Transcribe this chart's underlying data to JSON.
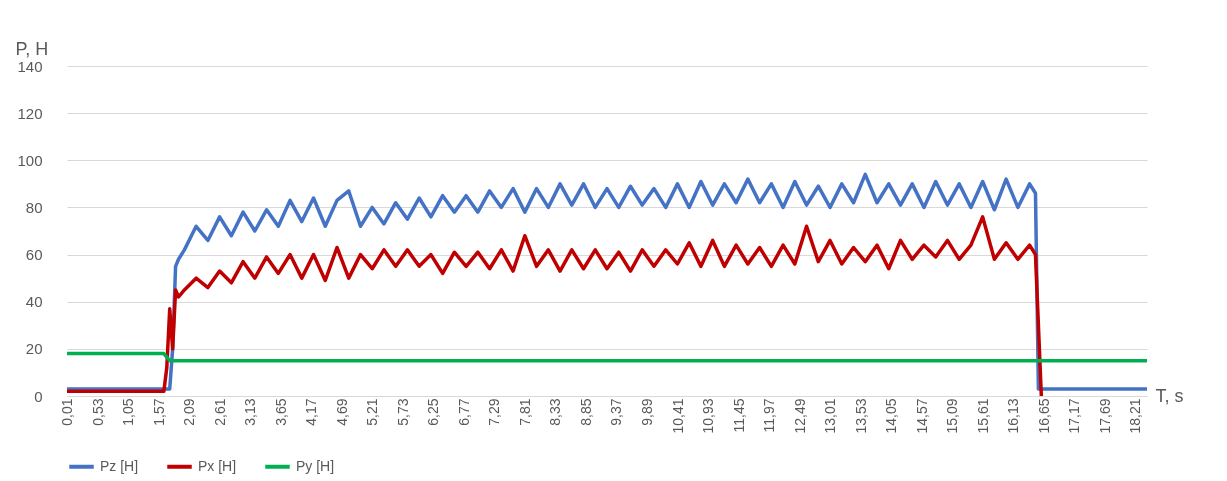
{
  "chart_data": {
    "type": "line",
    "xlabel": "T, s",
    "ylabel": "P, H",
    "xlim": [
      0,
      18.4
    ],
    "ylim": [
      0,
      140
    ],
    "yticks": [
      0,
      20,
      40,
      60,
      80,
      100,
      120,
      140
    ],
    "xticks": [
      {
        "value": 0.01,
        "label": "0,01"
      },
      {
        "value": 0.53,
        "label": "0,53"
      },
      {
        "value": 1.05,
        "label": "1,05"
      },
      {
        "value": 1.57,
        "label": "1,57"
      },
      {
        "value": 2.09,
        "label": "2,09"
      },
      {
        "value": 2.61,
        "label": "2,61"
      },
      {
        "value": 3.13,
        "label": "3,13"
      },
      {
        "value": 3.65,
        "label": "3,65"
      },
      {
        "value": 4.17,
        "label": "4,17"
      },
      {
        "value": 4.69,
        "label": "4,69"
      },
      {
        "value": 5.21,
        "label": "5,21"
      },
      {
        "value": 5.73,
        "label": "5,73"
      },
      {
        "value": 6.25,
        "label": "6,25"
      },
      {
        "value": 6.77,
        "label": "6,77"
      },
      {
        "value": 7.29,
        "label": "7,29"
      },
      {
        "value": 7.81,
        "label": "7,81"
      },
      {
        "value": 8.33,
        "label": "8,33"
      },
      {
        "value": 8.85,
        "label": "8,85"
      },
      {
        "value": 9.37,
        "label": "9,37"
      },
      {
        "value": 9.89,
        "label": "9,89"
      },
      {
        "value": 10.41,
        "label": "10,41"
      },
      {
        "value": 10.93,
        "label": "10,93"
      },
      {
        "value": 11.45,
        "label": "11,45"
      },
      {
        "value": 11.97,
        "label": "11,97"
      },
      {
        "value": 12.49,
        "label": "12,49"
      },
      {
        "value": 13.01,
        "label": "13,01"
      },
      {
        "value": 13.53,
        "label": "13,53"
      },
      {
        "value": 14.05,
        "label": "14,05"
      },
      {
        "value": 14.57,
        "label": "14,57"
      },
      {
        "value": 15.09,
        "label": "15,09"
      },
      {
        "value": 15.61,
        "label": "15,61"
      },
      {
        "value": 16.13,
        "label": "16,13"
      },
      {
        "value": 16.65,
        "label": "16,65"
      },
      {
        "value": 17.17,
        "label": "17,17"
      },
      {
        "value": 17.69,
        "label": "17,69"
      },
      {
        "value": 18.21,
        "label": "18,21"
      }
    ],
    "grid": "y",
    "legend": "bottom",
    "line_style": "solid",
    "marker": "none",
    "series": [
      {
        "name": "Pz [H]",
        "color": "#4472c4",
        "x": [
          0,
          1.75,
          1.8,
          1.85,
          1.9,
          2.0,
          2.2,
          2.4,
          2.6,
          2.8,
          3.0,
          3.2,
          3.4,
          3.6,
          3.8,
          4.0,
          4.2,
          4.4,
          4.6,
          4.8,
          5.0,
          5.2,
          5.4,
          5.6,
          5.8,
          6.0,
          6.2,
          6.4,
          6.6,
          6.8,
          7.0,
          7.2,
          7.4,
          7.6,
          7.8,
          8.0,
          8.2,
          8.4,
          8.6,
          8.8,
          9.0,
          9.2,
          9.4,
          9.6,
          9.8,
          10.0,
          10.2,
          10.4,
          10.6,
          10.8,
          11.0,
          11.2,
          11.4,
          11.6,
          11.8,
          12.0,
          12.2,
          12.4,
          12.6,
          12.8,
          13.0,
          13.2,
          13.4,
          13.6,
          13.8,
          14.0,
          14.2,
          14.4,
          14.6,
          14.8,
          15.0,
          15.2,
          15.4,
          15.6,
          15.8,
          16.0,
          16.2,
          16.4,
          16.5,
          16.55,
          16.7,
          18.4
        ],
        "values": [
          3,
          3,
          20,
          55,
          58,
          62,
          72,
          66,
          76,
          68,
          78,
          70,
          79,
          72,
          83,
          74,
          84,
          72,
          83,
          87,
          72,
          80,
          73,
          82,
          75,
          84,
          76,
          85,
          78,
          85,
          78,
          87,
          80,
          88,
          78,
          88,
          80,
          90,
          81,
          90,
          80,
          88,
          80,
          89,
          81,
          88,
          80,
          90,
          80,
          91,
          81,
          90,
          82,
          92,
          82,
          90,
          80,
          91,
          81,
          89,
          80,
          90,
          82,
          94,
          82,
          90,
          81,
          90,
          80,
          91,
          81,
          90,
          80,
          91,
          79,
          92,
          80,
          90,
          86,
          3,
          3,
          3
        ]
      },
      {
        "name": "Px [H]",
        "color": "#c00000",
        "x": [
          0,
          1.65,
          1.7,
          1.75,
          1.8,
          1.85,
          1.9,
          2.0,
          2.2,
          2.4,
          2.6,
          2.8,
          3.0,
          3.2,
          3.4,
          3.6,
          3.8,
          4.0,
          4.2,
          4.4,
          4.6,
          4.8,
          5.0,
          5.2,
          5.4,
          5.6,
          5.8,
          6.0,
          6.2,
          6.4,
          6.6,
          6.8,
          7.0,
          7.2,
          7.4,
          7.6,
          7.8,
          8.0,
          8.2,
          8.4,
          8.6,
          8.8,
          9.0,
          9.2,
          9.4,
          9.6,
          9.8,
          10.0,
          10.2,
          10.4,
          10.6,
          10.8,
          11.0,
          11.2,
          11.4,
          11.6,
          11.8,
          12.0,
          12.2,
          12.4,
          12.6,
          12.8,
          13.0,
          13.2,
          13.4,
          13.6,
          13.8,
          14.0,
          14.2,
          14.4,
          14.6,
          14.8,
          15.0,
          15.2,
          15.4,
          15.6,
          15.8,
          16.0,
          16.2,
          16.4,
          16.5,
          16.6
        ],
        "values": [
          2,
          2,
          12,
          37,
          20,
          45,
          42,
          45,
          50,
          46,
          53,
          48,
          57,
          50,
          59,
          52,
          60,
          50,
          60,
          49,
          63,
          50,
          60,
          54,
          62,
          55,
          62,
          55,
          60,
          52,
          61,
          55,
          61,
          54,
          62,
          53,
          68,
          55,
          62,
          53,
          62,
          54,
          62,
          54,
          61,
          53,
          62,
          55,
          62,
          56,
          65,
          55,
          66,
          55,
          64,
          56,
          63,
          55,
          64,
          56,
          72,
          57,
          66,
          56,
          63,
          57,
          64,
          54,
          66,
          58,
          64,
          59,
          66,
          58,
          64,
          76,
          58,
          65,
          58,
          64,
          60,
          0
        ]
      },
      {
        "name": "Py [H]",
        "color": "#00b050",
        "x": [
          0,
          1.65,
          1.75,
          18.4
        ],
        "values": [
          18,
          18,
          15,
          15
        ]
      }
    ]
  }
}
